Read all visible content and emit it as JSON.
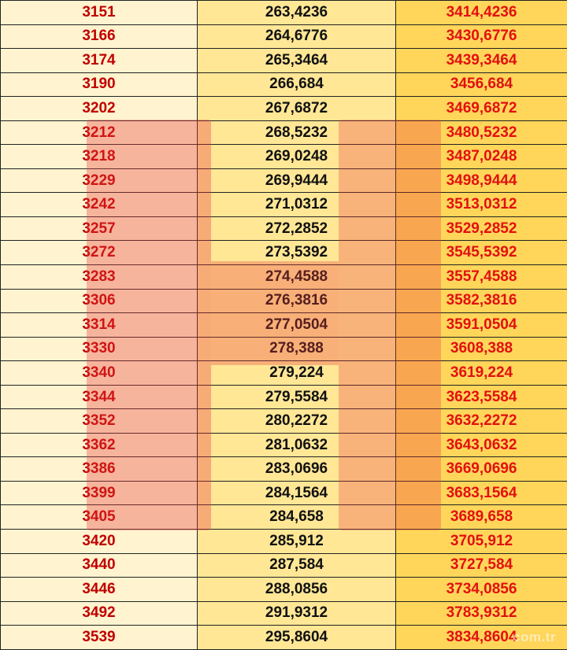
{
  "rows": [
    [
      "3151",
      "263,4236",
      "3414,4236"
    ],
    [
      "3166",
      "264,6776",
      "3430,6776"
    ],
    [
      "3174",
      "265,3464",
      "3439,3464"
    ],
    [
      "3190",
      "266,684",
      "3456,684"
    ],
    [
      "3202",
      "267,6872",
      "3469,6872"
    ],
    [
      "3212",
      "268,5232",
      "3480,5232"
    ],
    [
      "3218",
      "269,0248",
      "3487,0248"
    ],
    [
      "3229",
      "269,9444",
      "3498,9444"
    ],
    [
      "3242",
      "271,0312",
      "3513,0312"
    ],
    [
      "3257",
      "272,2852",
      "3529,2852"
    ],
    [
      "3272",
      "273,5392",
      "3545,5392"
    ],
    [
      "3283",
      "274,4588",
      "3557,4588"
    ],
    [
      "3306",
      "276,3816",
      "3582,3816"
    ],
    [
      "3314",
      "277,0504",
      "3591,0504"
    ],
    [
      "3330",
      "278,388",
      "3608,388"
    ],
    [
      "3340",
      "279,224",
      "3619,224"
    ],
    [
      "3344",
      "279,5584",
      "3623,5584"
    ],
    [
      "3352",
      "280,2272",
      "3632,2272"
    ],
    [
      "3362",
      "281,0632",
      "3643,0632"
    ],
    [
      "3386",
      "283,0696",
      "3669,0696"
    ],
    [
      "3399",
      "284,1564",
      "3683,1564"
    ],
    [
      "3405",
      "284,658",
      "3689,658"
    ],
    [
      "3420",
      "285,912",
      "3705,912"
    ],
    [
      "3440",
      "287,584",
      "3727,584"
    ],
    [
      "3446",
      "288,0856",
      "3734,0856"
    ],
    [
      "3492",
      "291,9312",
      "3783,9312"
    ],
    [
      "3539",
      "295,8604",
      "3834,8604"
    ]
  ],
  "watermark": {
    "source_text": "com.tr"
  },
  "colors": {
    "col1_bg": "#fff4cf",
    "col2_bg": "#ffe796",
    "col3_bg": "#ffd65a",
    "col1_text": "#c00000",
    "col2_text": "#111111",
    "col3_text": "#e21010"
  }
}
